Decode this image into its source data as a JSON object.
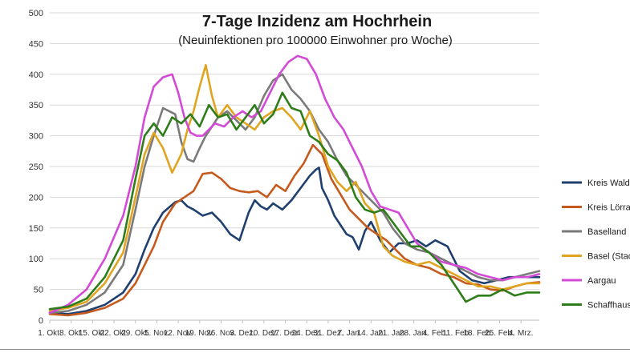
{
  "chart_data": {
    "type": "line",
    "title": "7-Tage Inzidenz am Hochrhein",
    "subtitle": "(Neuinfektionen pro 100000 Einwohner pro Woche)",
    "xlabel": "",
    "ylabel": "",
    "ylim": [
      0,
      500
    ],
    "y_ticks": [
      0,
      50,
      100,
      150,
      200,
      250,
      300,
      350,
      400,
      450,
      500
    ],
    "grid": true,
    "legend_position": "right",
    "x_range": [
      0,
      160
    ],
    "x_tick_labels": [
      {
        "x": 0,
        "label": "1. Okt."
      },
      {
        "x": 7,
        "label": "8. Okt."
      },
      {
        "x": 14,
        "label": "15. Okt."
      },
      {
        "x": 21,
        "label": "22. Okt."
      },
      {
        "x": 28,
        "label": "29. Okt."
      },
      {
        "x": 35,
        "label": "5. Nov."
      },
      {
        "x": 42,
        "label": "12. Nov."
      },
      {
        "x": 49,
        "label": "19. Nov."
      },
      {
        "x": 56,
        "label": "26. Nov."
      },
      {
        "x": 63,
        "label": "3. Dez."
      },
      {
        "x": 70,
        "label": "10. Dez."
      },
      {
        "x": 77,
        "label": "17. Dez."
      },
      {
        "x": 84,
        "label": "24. Dez."
      },
      {
        "x": 91,
        "label": "31. Dez."
      },
      {
        "x": 98,
        "label": "7. Jan."
      },
      {
        "x": 105,
        "label": "14. Jan."
      },
      {
        "x": 112,
        "label": "21. Jan."
      },
      {
        "x": 119,
        "label": "28. Jan."
      },
      {
        "x": 126,
        "label": "4. Feb."
      },
      {
        "x": 133,
        "label": "11. Feb."
      },
      {
        "x": 140,
        "label": "18. Feb."
      },
      {
        "x": 147,
        "label": "25. Feb."
      },
      {
        "x": 154,
        "label": "4. Mrz."
      }
    ],
    "series": [
      {
        "name": "Kreis Waldshut",
        "color": "#1f3f6e",
        "x": [
          0,
          6,
          12,
          18,
          24,
          28,
          31,
          34,
          37,
          41,
          43,
          45,
          47,
          50,
          53,
          56,
          59,
          62,
          65,
          67,
          69,
          71,
          73,
          76,
          79,
          82,
          85,
          87,
          88,
          89,
          91,
          93,
          95,
          97,
          99,
          101,
          103,
          105,
          108,
          111,
          114,
          117,
          120,
          123,
          126,
          130,
          134,
          138,
          142,
          146,
          150,
          154,
          158,
          160
        ],
        "y": [
          12,
          10,
          15,
          25,
          45,
          75,
          115,
          150,
          175,
          192,
          195,
          185,
          180,
          170,
          175,
          160,
          140,
          130,
          175,
          195,
          185,
          180,
          190,
          180,
          195,
          215,
          235,
          245,
          248,
          215,
          195,
          170,
          155,
          140,
          135,
          115,
          145,
          160,
          130,
          110,
          125,
          125,
          130,
          120,
          130,
          120,
          80,
          65,
          60,
          65,
          70,
          70,
          70,
          70
        ]
      },
      {
        "name": "Kreis Lörrach",
        "color": "#c55a1e",
        "x": [
          0,
          6,
          12,
          18,
          24,
          28,
          31,
          34,
          37,
          41,
          44,
          47,
          50,
          53,
          56,
          59,
          62,
          65,
          68,
          71,
          74,
          77,
          80,
          83,
          86,
          89,
          92,
          95,
          98,
          101,
          104,
          107,
          110,
          113,
          116,
          120,
          124,
          128,
          132,
          136,
          140,
          144,
          148,
          152,
          156,
          160
        ],
        "y": [
          10,
          8,
          12,
          20,
          35,
          60,
          90,
          120,
          160,
          190,
          200,
          210,
          238,
          240,
          230,
          215,
          210,
          208,
          210,
          200,
          220,
          210,
          235,
          255,
          285,
          270,
          230,
          205,
          180,
          165,
          150,
          140,
          130,
          115,
          100,
          90,
          85,
          75,
          70,
          60,
          58,
          50,
          48,
          55,
          60,
          62
        ]
      },
      {
        "name": "Baselland",
        "color": "#7a7a7a",
        "x": [
          0,
          6,
          12,
          18,
          24,
          28,
          31,
          34,
          37,
          41,
          43,
          45,
          47,
          49,
          51,
          53,
          55,
          58,
          61,
          64,
          67,
          70,
          73,
          76,
          79,
          82,
          85,
          88,
          91,
          94,
          97,
          100,
          103,
          106,
          109,
          112,
          116,
          120,
          124,
          128,
          132,
          136,
          140,
          144,
          148,
          152,
          156,
          160
        ],
        "y": [
          12,
          15,
          25,
          45,
          90,
          180,
          250,
          300,
          345,
          335,
          290,
          262,
          258,
          280,
          300,
          315,
          330,
          340,
          325,
          310,
          330,
          365,
          390,
          400,
          375,
          360,
          340,
          310,
          290,
          260,
          235,
          220,
          205,
          190,
          175,
          150,
          125,
          115,
          110,
          100,
          90,
          80,
          70,
          65,
          65,
          70,
          75,
          80
        ]
      },
      {
        "name": "Basel (Stadt)",
        "color": "#e0a520",
        "x": [
          0,
          6,
          12,
          18,
          24,
          28,
          31,
          34,
          37,
          40,
          43,
          45,
          47,
          49,
          51,
          53,
          55,
          58,
          61,
          64,
          67,
          70,
          73,
          76,
          79,
          82,
          85,
          88,
          91,
          94,
          97,
          100,
          103,
          106,
          109,
          112,
          116,
          120,
          124,
          128,
          132,
          136,
          140,
          144,
          148,
          152,
          156,
          160
        ],
        "y": [
          15,
          20,
          30,
          60,
          110,
          200,
          270,
          305,
          280,
          240,
          270,
          310,
          340,
          380,
          415,
          365,
          330,
          350,
          330,
          320,
          310,
          330,
          340,
          345,
          330,
          310,
          340,
          300,
          250,
          225,
          210,
          225,
          190,
          175,
          120,
          105,
          95,
          90,
          95,
          85,
          75,
          65,
          55,
          55,
          50,
          55,
          60,
          60
        ]
      },
      {
        "name": "Aargau",
        "color": "#d34ad6",
        "x": [
          0,
          6,
          12,
          18,
          24,
          28,
          31,
          34,
          37,
          40,
          42,
          44,
          46,
          48,
          50,
          52,
          54,
          57,
          60,
          63,
          66,
          69,
          72,
          75,
          78,
          81,
          84,
          87,
          90,
          93,
          96,
          99,
          102,
          105,
          108,
          111,
          114,
          117,
          120,
          124,
          128,
          132,
          136,
          140,
          144,
          148,
          152,
          156,
          160
        ],
        "y": [
          12,
          25,
          50,
          100,
          170,
          250,
          330,
          380,
          395,
          400,
          370,
          330,
          305,
          300,
          300,
          310,
          320,
          315,
          330,
          340,
          330,
          340,
          370,
          400,
          420,
          430,
          425,
          400,
          360,
          330,
          310,
          280,
          250,
          210,
          185,
          180,
          175,
          150,
          125,
          110,
          95,
          90,
          85,
          75,
          70,
          65,
          70,
          70,
          75
        ]
      },
      {
        "name": "Schaffhausen",
        "color": "#2e7d1a",
        "x": [
          0,
          6,
          12,
          18,
          24,
          28,
          31,
          34,
          37,
          40,
          43,
          46,
          49,
          52,
          55,
          58,
          61,
          64,
          67,
          70,
          73,
          76,
          79,
          82,
          85,
          88,
          91,
          94,
          97,
          100,
          103,
          106,
          109,
          112,
          115,
          118,
          121,
          124,
          128,
          132,
          136,
          140,
          144,
          148,
          152,
          156,
          160
        ],
        "y": [
          18,
          22,
          35,
          70,
          130,
          230,
          300,
          320,
          300,
          330,
          320,
          335,
          315,
          350,
          330,
          335,
          310,
          330,
          350,
          320,
          335,
          370,
          345,
          340,
          300,
          290,
          270,
          260,
          240,
          200,
          180,
          175,
          180,
          160,
          140,
          120,
          120,
          110,
          90,
          60,
          30,
          40,
          40,
          50,
          40,
          45,
          45
        ]
      }
    ]
  }
}
